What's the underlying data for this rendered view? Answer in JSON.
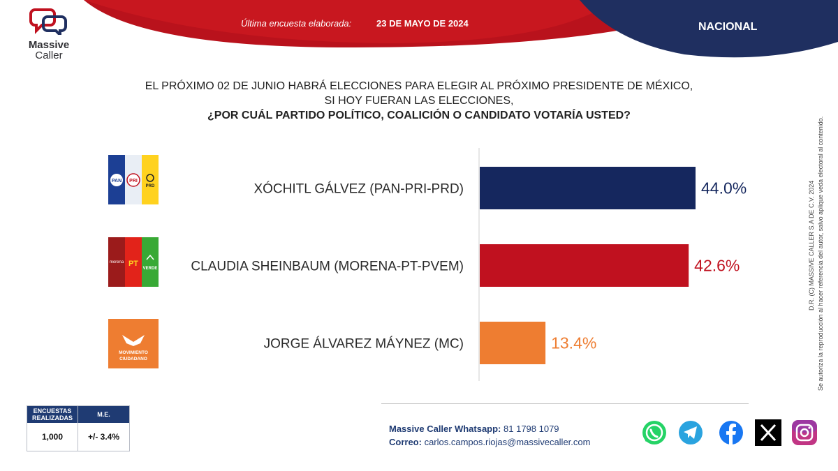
{
  "brand": {
    "name_line1": "Massive",
    "name_line2": "Caller"
  },
  "header": {
    "label": "Última encuesta elaborada:",
    "date": "23 DE MAYO DE 2024",
    "scope": "NACIONAL"
  },
  "question": {
    "line1": "EL PRÓXIMO 02 DE JUNIO HABRÁ ELECCIONES PARA ELEGIR AL PRÓXIMO PRESIDENTE DE MÉXICO,",
    "line2": "SI HOY FUERAN LAS ELECCIONES,",
    "line3": "¿POR CUÁL PARTIDO POLÍTICO, COALICIÓN O CANDIDATO VOTARÍA USTED?"
  },
  "chart_data": {
    "type": "bar",
    "orientation": "horizontal",
    "categories": [
      "XÓCHITL GÁLVEZ (PAN-PRI-PRD)",
      "CLAUDIA SHEINBAUM (MORENA-PT-PVEM)",
      "JORGE ÁLVAREZ MÁYNEZ (MC)"
    ],
    "values": [
      44.0,
      42.6,
      13.4
    ],
    "value_labels": [
      "44.0%",
      "42.6%",
      "13.4%"
    ],
    "colors": [
      "#15275e",
      "#c0111f",
      "#ee7d31"
    ],
    "label_colors": [
      "#15275e",
      "#c0111f",
      "#ee7d31"
    ],
    "xlim": [
      0,
      44
    ],
    "party_logos": [
      "pan-pri-prd-logo",
      "morena-pt-pvem-logo",
      "movimiento-ciudadano-logo"
    ],
    "logo_text": {
      "pan": "PAN",
      "pri": "PRI",
      "prd": "PRD",
      "morena": "morena",
      "pt": "PT",
      "verde": "VERDE",
      "mc1": "MOVIMIENTO",
      "mc2": "CIUDADANO"
    }
  },
  "sidebar": {
    "line1": "D.R. (C) MASSIVE CALLER S.A DE C.V. 2024",
    "line2": "Se autoriza la reproducción al hacer referencia del autor, salvo aplique veda electoral al contenido."
  },
  "stats": {
    "header_left": "ENCUESTAS REALIZADAS",
    "header_right": "M.E.",
    "value_left": "1,000",
    "value_right": "+/- 3.4%"
  },
  "contact": {
    "whatsapp_label": "Massive Caller Whatsapp:",
    "whatsapp_number": "81 1798 1079",
    "email_label": "Correo:",
    "email": "carlos.campos.riojas@massivecaller.com"
  },
  "social": [
    "whatsapp-icon",
    "telegram-icon",
    "facebook-icon",
    "x-icon",
    "instagram-icon"
  ]
}
